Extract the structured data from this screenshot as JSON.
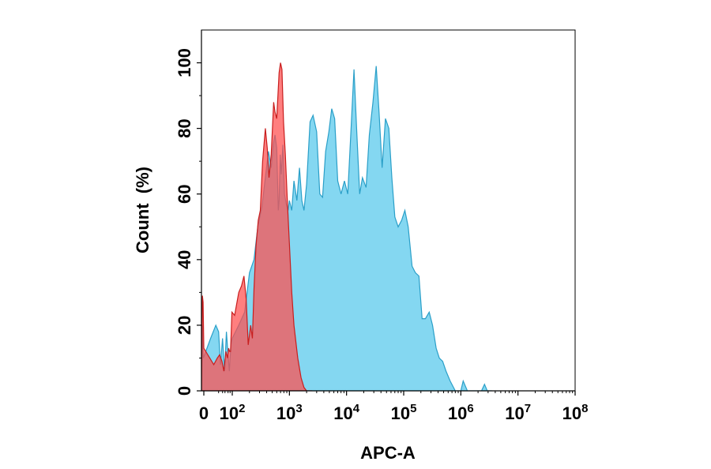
{
  "chart_data": {
    "type": "area",
    "xlabel": "APC-A",
    "ylabel": "Count  (%)",
    "xscale": "biexponential (log)",
    "xlim": [
      -10,
      100000000
    ],
    "ylim": [
      0,
      110
    ],
    "grid": false,
    "legend": "none",
    "x_tick_labels": [
      {
        "value": 0,
        "base": "0",
        "exp": ""
      },
      {
        "value": 100,
        "base": "10",
        "exp": "2"
      },
      {
        "value": 1000,
        "base": "10",
        "exp": "3"
      },
      {
        "value": 10000,
        "base": "10",
        "exp": "4"
      },
      {
        "value": 100000,
        "base": "10",
        "exp": "5"
      },
      {
        "value": 1000000,
        "base": "10",
        "exp": "6"
      },
      {
        "value": 10000000,
        "base": "10",
        "exp": "7"
      },
      {
        "value": 100000000,
        "base": "10",
        "exp": "8"
      }
    ],
    "y_tick_labels": [
      0,
      20,
      40,
      60,
      80,
      100
    ],
    "series": [
      {
        "color": "#55c8ec",
        "stroke": "#2a9fc8",
        "opacity": 0.72,
        "points": [
          [
            -10,
            0
          ],
          [
            -6,
            20
          ],
          [
            -2,
            10
          ],
          [
            2,
            16
          ],
          [
            6,
            20
          ],
          [
            10,
            18
          ],
          [
            14,
            8
          ],
          [
            20,
            16
          ],
          [
            28,
            6
          ],
          [
            38,
            18
          ],
          [
            50,
            11
          ],
          [
            62,
            6
          ],
          [
            80,
            14
          ],
          [
            100,
            16
          ],
          [
            130,
            20
          ],
          [
            165,
            24
          ],
          [
            200,
            36
          ],
          [
            240,
            40
          ],
          [
            280,
            50
          ],
          [
            330,
            56
          ],
          [
            380,
            65
          ],
          [
            430,
            73
          ],
          [
            480,
            68
          ],
          [
            520,
            75
          ],
          [
            560,
            78
          ],
          [
            600,
            74
          ],
          [
            640,
            55
          ],
          [
            660,
            58
          ],
          [
            690,
            72
          ],
          [
            720,
            66
          ],
          [
            770,
            75
          ],
          [
            820,
            60
          ],
          [
            880,
            57
          ],
          [
            950,
            55
          ],
          [
            1000,
            58
          ],
          [
            1100,
            55
          ],
          [
            1200,
            64
          ],
          [
            1350,
            58
          ],
          [
            1500,
            68
          ],
          [
            1650,
            58
          ],
          [
            1800,
            55
          ],
          [
            2000,
            63
          ],
          [
            2300,
            82
          ],
          [
            2600,
            84
          ],
          [
            3000,
            79
          ],
          [
            3400,
            60
          ],
          [
            3800,
            59
          ],
          [
            4300,
            73
          ],
          [
            4900,
            79
          ],
          [
            5500,
            86
          ],
          [
            6200,
            83
          ],
          [
            7000,
            64
          ],
          [
            8000,
            60
          ],
          [
            9200,
            64
          ],
          [
            10500,
            60
          ],
          [
            12000,
            80
          ],
          [
            13500,
            98
          ],
          [
            15000,
            80
          ],
          [
            17000,
            60
          ],
          [
            19000,
            65
          ],
          [
            22000,
            62
          ],
          [
            25000,
            78
          ],
          [
            29000,
            88
          ],
          [
            33000,
            99
          ],
          [
            37000,
            85
          ],
          [
            42000,
            68
          ],
          [
            48000,
            83
          ],
          [
            55000,
            80
          ],
          [
            62000,
            65
          ],
          [
            70000,
            53
          ],
          [
            80000,
            50
          ],
          [
            92000,
            52
          ],
          [
            105000,
            55
          ],
          [
            120000,
            50
          ],
          [
            140000,
            38
          ],
          [
            160000,
            36
          ],
          [
            185000,
            35
          ],
          [
            210000,
            22
          ],
          [
            240000,
            22
          ],
          [
            280000,
            24
          ],
          [
            320000,
            20
          ],
          [
            370000,
            13
          ],
          [
            420000,
            10
          ],
          [
            480000,
            9
          ],
          [
            550000,
            6
          ],
          [
            650000,
            3
          ],
          [
            800000,
            0
          ],
          [
            1000000,
            0
          ],
          [
            1100000,
            3
          ],
          [
            1300000,
            0
          ],
          [
            2300000,
            0
          ],
          [
            2600000,
            2
          ],
          [
            2900000,
            0
          ],
          [
            3500000,
            0
          ]
        ]
      },
      {
        "color": "#ff4d4d",
        "stroke": "#c81e1e",
        "opacity": 0.72,
        "points": [
          [
            -10,
            0
          ],
          [
            -6,
            29
          ],
          [
            -3,
            27
          ],
          [
            0,
            13
          ],
          [
            4,
            8
          ],
          [
            8,
            10
          ],
          [
            12,
            11
          ],
          [
            18,
            9
          ],
          [
            25,
            6
          ],
          [
            35,
            12
          ],
          [
            45,
            10
          ],
          [
            55,
            13
          ],
          [
            65,
            12
          ],
          [
            75,
            12
          ],
          [
            85,
            18
          ],
          [
            95,
            24
          ],
          [
            110,
            23
          ],
          [
            130,
            30
          ],
          [
            145,
            32
          ],
          [
            160,
            35
          ],
          [
            175,
            28
          ],
          [
            190,
            14
          ],
          [
            210,
            20
          ],
          [
            225,
            16
          ],
          [
            240,
            31
          ],
          [
            260,
            44
          ],
          [
            285,
            52
          ],
          [
            310,
            55
          ],
          [
            340,
            70
          ],
          [
            380,
            80
          ],
          [
            410,
            74
          ],
          [
            440,
            65
          ],
          [
            480,
            72
          ],
          [
            530,
            88
          ],
          [
            560,
            85
          ],
          [
            600,
            83
          ],
          [
            660,
            97
          ],
          [
            700,
            100
          ],
          [
            740,
            98
          ],
          [
            790,
            82
          ],
          [
            850,
            72
          ],
          [
            920,
            58
          ],
          [
            1000,
            45
          ],
          [
            1100,
            30
          ],
          [
            1200,
            20
          ],
          [
            1400,
            10
          ],
          [
            1600,
            4
          ],
          [
            1800,
            1
          ],
          [
            2000,
            0
          ],
          [
            2500,
            0
          ]
        ]
      }
    ]
  }
}
